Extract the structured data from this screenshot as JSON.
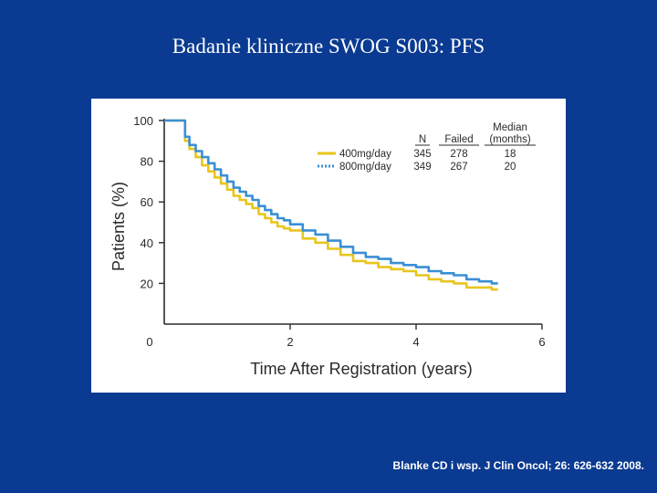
{
  "slide": {
    "title": "Badanie kliniczne SWOG S003: PFS",
    "citation": "Blanke CD i wsp. J Clin Oncol; 26: 626-632 2008."
  },
  "colors": {
    "background": "#0a3a91",
    "series_400": "#e8c51e",
    "series_800": "#3a8fd6"
  },
  "chart_data": {
    "type": "line",
    "xlabel": "Time After Registration (years)",
    "ylabel": "Patients (%)",
    "xlim": [
      0,
      6
    ],
    "ylim": [
      0,
      100
    ],
    "x_ticks": [
      0,
      2,
      4,
      6
    ],
    "y_ticks": [
      20,
      40,
      60,
      80,
      100
    ],
    "grid": false,
    "legend_position": "top-right",
    "legend_headers": {
      "n": "N",
      "failed": "Failed",
      "median_line1": "Median",
      "median_line2": "(months)"
    },
    "series": [
      {
        "name": "400mg/day",
        "color": "#e8c51e",
        "style": "solid",
        "n": "345",
        "failed": "278",
        "median": "18",
        "x": [
          0,
          0.3,
          0.33,
          0.4,
          0.5,
          0.6,
          0.7,
          0.8,
          0.9,
          1.0,
          1.1,
          1.2,
          1.3,
          1.4,
          1.5,
          1.6,
          1.7,
          1.8,
          1.9,
          2.0,
          2.2,
          2.4,
          2.6,
          2.8,
          3.0,
          3.2,
          3.4,
          3.6,
          3.8,
          4.0,
          4.2,
          4.4,
          4.6,
          4.8,
          5.0,
          5.2,
          5.3
        ],
        "y": [
          100,
          100,
          90,
          86,
          82,
          78,
          75,
          72,
          69,
          66,
          63,
          61,
          59,
          57,
          54,
          52,
          50,
          48,
          47,
          46,
          42,
          40,
          37,
          34,
          31,
          30,
          28,
          27,
          26,
          24,
          22,
          21,
          20,
          18,
          18,
          17,
          17
        ]
      },
      {
        "name": "800mg/day",
        "color": "#3a8fd6",
        "style": "dotted",
        "n": "349",
        "failed": "267",
        "median": "20",
        "x": [
          0,
          0.3,
          0.33,
          0.4,
          0.5,
          0.6,
          0.7,
          0.8,
          0.9,
          1.0,
          1.1,
          1.2,
          1.3,
          1.4,
          1.5,
          1.6,
          1.7,
          1.8,
          1.9,
          2.0,
          2.2,
          2.4,
          2.6,
          2.8,
          3.0,
          3.2,
          3.4,
          3.6,
          3.8,
          4.0,
          4.2,
          4.4,
          4.6,
          4.8,
          5.0,
          5.2,
          5.3
        ],
        "y": [
          100,
          100,
          92,
          88,
          85,
          82,
          79,
          76,
          73,
          70,
          67,
          65,
          63,
          61,
          58,
          56,
          54,
          52,
          51,
          49,
          46,
          44,
          41,
          38,
          35,
          33,
          32,
          30,
          29,
          28,
          26,
          25,
          24,
          22,
          21,
          20,
          20
        ]
      }
    ]
  }
}
